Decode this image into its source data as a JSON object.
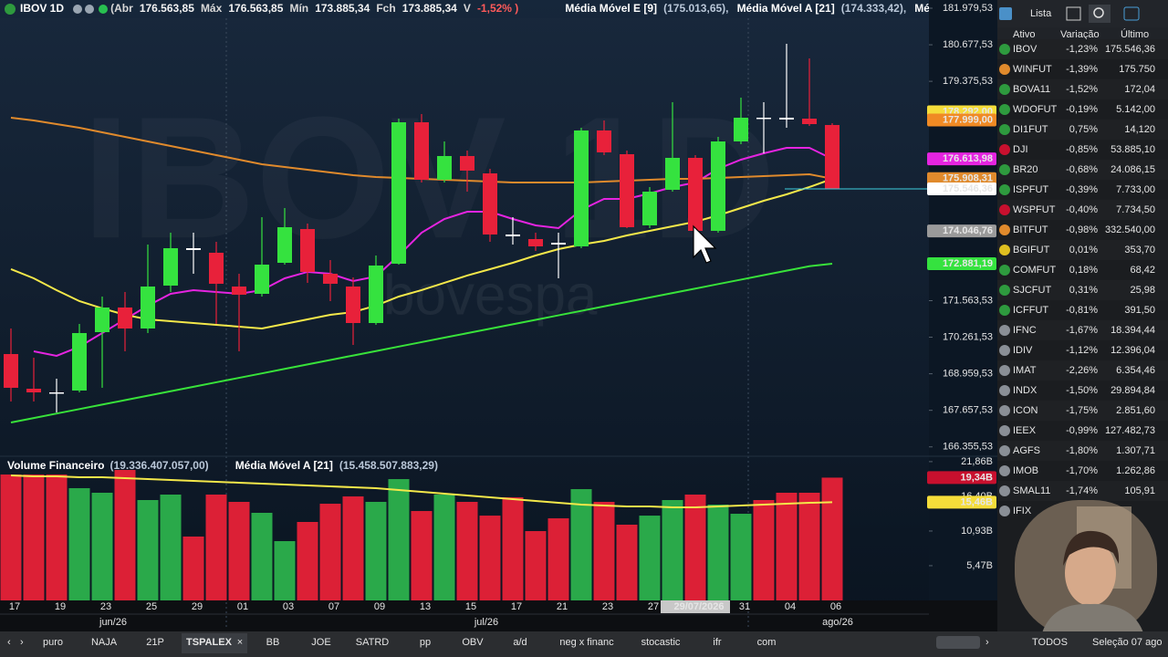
{
  "header": {
    "symbol": "IBOV 1D",
    "open_label": "(Abr",
    "open": "176.563,85",
    "high_label": "Máx",
    "high": "176.563,85",
    "low_label": "Mín",
    "low": "173.885,34",
    "close_label": "Fch",
    "close": "173.885,34",
    "var_label": "V",
    "var": "-1,52% )",
    "ma_values": [
      "(175.013,65),",
      "(174.333,42),"
    ],
    "more": "Média Mó"
  },
  "watermark": {
    "symbol": "IBOV 1D",
    "exchange": "bovespa"
  },
  "chart_data": [
    {
      "type": "candlestick",
      "categories": [
        "17",
        null,
        "19",
        null,
        "23",
        null,
        "25",
        null,
        "29",
        null,
        "01",
        null,
        "03",
        null,
        "07",
        null,
        "09",
        null,
        "13",
        null,
        "15",
        null,
        "17",
        null,
        "21",
        null,
        "23",
        null,
        "27",
        null,
        "29/07/2026",
        null,
        "31",
        null,
        "04",
        null,
        "06"
      ],
      "crosshair_index": 30,
      "months": [
        "jun/26",
        "jul/26",
        "ago/26"
      ],
      "open": [
        169662,
        168427,
        168297,
        168362,
        170442,
        171320,
        170572,
        172100,
        173432,
        173270,
        172067,
        171807,
        172912,
        174115,
        172522,
        172067,
        170767,
        172880,
        177917,
        175870,
        176715,
        176097,
        173920,
        173757,
        173627,
        173497,
        177625,
        176780,
        174245,
        175512,
        176650,
        174050,
        177235,
        178080,
        178080,
        178047,
        177820
      ],
      "high": [
        170572,
        169532,
        168785,
        170735,
        171710,
        171872,
        173562,
        173985,
        173985,
        173660,
        172522,
        174537,
        174862,
        174310,
        173010,
        172392,
        173172,
        178047,
        178210,
        177235,
        176910,
        176260,
        174537,
        173985,
        173985,
        177722,
        177982,
        176910,
        175610,
        178632,
        176747,
        177397,
        178795,
        178632,
        180712,
        180192,
        177885
      ],
      "low": [
        167972,
        167972,
        167582,
        168297,
        168460,
        169760,
        170410,
        171872,
        172522,
        170735,
        169760,
        171710,
        172847,
        172197,
        171547,
        169987,
        170702,
        172847,
        175772,
        175772,
        175447,
        173660,
        173562,
        173335,
        172360,
        173432,
        176747,
        174147,
        174147,
        175447,
        173985,
        173985,
        177137,
        176812,
        177722,
        177787,
        175610
      ],
      "close": [
        168460,
        168297,
        168265,
        170410,
        171320,
        170572,
        172067,
        173432,
        173367,
        172165,
        171775,
        172847,
        174180,
        172587,
        172165,
        170767,
        172815,
        177917,
        175870,
        176715,
        176195,
        173920,
        173855,
        173497,
        173562,
        177625,
        176845,
        174180,
        175447,
        176650,
        174050,
        177235,
        178080,
        178047,
        178015,
        177852,
        175546
      ],
      "up_color": "#35e23f",
      "down_color": "#e8213a",
      "doji_color": "#ffffff",
      "series": [
        {
          "name": "Média Móvel E [9]",
          "color": "#e524e0",
          "values": [
            null,
            169760,
            169598,
            169922,
            170410,
            170898,
            171385,
            171808,
            171938,
            171872,
            171808,
            171938,
            172360,
            172588,
            172522,
            172262,
            172425,
            173172,
            173985,
            174472,
            174732,
            174732,
            174472,
            174245,
            174148,
            174798,
            175188,
            175188,
            175382,
            175610,
            175772,
            176260,
            176585,
            176812,
            177008,
            177008,
            176614
          ]
        },
        {
          "name": "Média Móvel A [21]",
          "color": "#f4e84a",
          "values": [
            172685,
            172360,
            171938,
            171547,
            171288,
            171060,
            170898,
            170832,
            170768,
            170702,
            170638,
            170572,
            170735,
            170898,
            171060,
            171158,
            171385,
            171710,
            171938,
            172198,
            172458,
            172685,
            172912,
            173172,
            173400,
            173562,
            173692,
            173888,
            174050,
            174212,
            174375,
            174602,
            174862,
            175122,
            175350,
            175610,
            175902
          ]
        },
        {
          "color": "#e08a2c",
          "values": [
            178080,
            177982,
            177852,
            177722,
            177560,
            177398,
            177235,
            177072,
            176910,
            176748,
            176585,
            176422,
            176325,
            176228,
            176130,
            176032,
            175968,
            175935,
            175902,
            175870,
            175838,
            175805,
            175772,
            175772,
            175772,
            175772,
            175805,
            175838,
            175870,
            175902,
            175902,
            175935,
            175968,
            176000,
            176032,
            176065,
            175908
          ]
        },
        {
          "color": "#38e23a",
          "values": [
            167225,
            167384,
            167543,
            167702,
            167861,
            168020,
            168179,
            168338,
            168497,
            168656,
            168815,
            168974,
            169133,
            169292,
            169451,
            169610,
            169769,
            169928,
            170087,
            170246,
            170405,
            170564,
            170723,
            170882,
            171041,
            171200,
            171359,
            171518,
            171677,
            171836,
            171995,
            172154,
            172313,
            172472,
            172631,
            172790,
            172881
          ]
        }
      ],
      "ylim": [
        166022,
        182272
      ],
      "yticks": [
        {
          "value": 181979.53,
          "label": "181.979,53"
        },
        {
          "value": 180677.53,
          "label": "180.677,53"
        },
        {
          "value": 179375.53,
          "label": "179.375,53"
        },
        {
          "value": 171563.53,
          "label": "171.563,53"
        },
        {
          "value": 170261.53,
          "label": "170.261,53"
        },
        {
          "value": 168959.53,
          "label": "168.959,53"
        },
        {
          "value": 167657.53,
          "label": "167.657,53"
        },
        {
          "value": 166355.53,
          "label": "166.355,53"
        }
      ],
      "axis_flags": [
        {
          "value": 178292,
          "label": "178.292,00",
          "color": "#f5dd3a"
        },
        {
          "value": 177999,
          "label": "177.999,00",
          "color": "#f08a24"
        },
        {
          "value": 176613.98,
          "label": "176.613,98",
          "color": "#e524e0"
        },
        {
          "value": 175908.31,
          "label": "175.908,31",
          "color": "#e08a2c"
        },
        {
          "value": 175546.36,
          "label": "175.546,36",
          "color": "#ffffff"
        },
        {
          "value": 174046.76,
          "label": "174.046,76",
          "color": "#9a9a9a"
        },
        {
          "value": 172881.19,
          "label": "172.881,19",
          "color": "#35e23f"
        }
      ],
      "price_line_color": "#3fd0e0"
    },
    {
      "type": "bar",
      "title": "Volume Financeiro",
      "title_value": "(19.336.407.057,00)",
      "values": [
        19.83,
        19.83,
        19.83,
        17.68,
        16.96,
        20.55,
        15.81,
        16.67,
        10.06,
        16.67,
        15.52,
        13.8,
        9.34,
        12.36,
        15.23,
        16.38,
        15.52,
        19.11,
        14.08,
        16.67,
        15.52,
        13.36,
        16.24,
        10.92,
        12.93,
        17.53,
        15.52,
        11.93,
        13.36,
        15.81,
        16.67,
        15.09,
        13.65,
        15.81,
        16.96,
        16.96,
        19.34
      ],
      "up_color": "#2aa94a",
      "down_color": "#dc2036",
      "series": [
        {
          "name": "Média Móvel A [21]",
          "value_text": "(15.458.507.883,29)",
          "color": "#f4e84a",
          "values": [
            19.69,
            19.54,
            19.54,
            19.4,
            19.4,
            19.26,
            19.11,
            18.97,
            18.82,
            18.68,
            18.54,
            18.39,
            18.25,
            18.11,
            17.96,
            17.82,
            17.67,
            17.39,
            17.1,
            16.81,
            16.53,
            16.24,
            15.95,
            15.66,
            15.38,
            15.09,
            14.94,
            14.8,
            14.8,
            14.66,
            14.66,
            14.8,
            14.94,
            15.09,
            15.23,
            15.38,
            15.46
          ]
        }
      ],
      "ylim": [
        0,
        22.42
      ],
      "yticks": [
        {
          "value": 21.86,
          "label": "21,86B"
        },
        {
          "value": 16.4,
          "label": "16,40B"
        },
        {
          "value": 10.93,
          "label": "10,93B"
        },
        {
          "value": 5.47,
          "label": "5,47B"
        }
      ],
      "axis_flags": [
        {
          "value": 19.34,
          "label": "19,34B",
          "color": "#c8102e"
        },
        {
          "value": 15.46,
          "label": "15,46B",
          "color": "#f5dd3a"
        }
      ]
    }
  ],
  "watchlist": {
    "title": "Lista",
    "columns": [
      "Ativo",
      "Variação",
      "Último"
    ],
    "rows": [
      {
        "ticker": "IBOV",
        "variation": "-1,23%",
        "last": "175.546,36"
      },
      {
        "ticker": "WINFUT",
        "variation": "-1,39%",
        "last": "175.750"
      },
      {
        "ticker": "BOVA11",
        "variation": "-1,52%",
        "last": "172,04"
      },
      {
        "ticker": "WDOFUT",
        "variation": "-0,19%",
        "last": "5.142,00"
      },
      {
        "ticker": "DI1FUT",
        "variation": "0,75%",
        "last": "14,120"
      },
      {
        "ticker": "DJI",
        "variation": "-0,85%",
        "last": "53.885,10"
      },
      {
        "ticker": "BR20",
        "variation": "-0,68%",
        "last": "24.086,15"
      },
      {
        "ticker": "ISPFUT",
        "variation": "-0,39%",
        "last": "7.733,00"
      },
      {
        "ticker": "WSPFUT",
        "variation": "-0,40%",
        "last": "7.734,50"
      },
      {
        "ticker": "BITFUT",
        "variation": "-0,98%",
        "last": "332.540,00"
      },
      {
        "ticker": "BGIFUT",
        "variation": "0,01%",
        "last": "353,70"
      },
      {
        "ticker": "COMFUT",
        "variation": "0,18%",
        "last": "68,42"
      },
      {
        "ticker": "SJCFUT",
        "variation": "0,31%",
        "last": "25,98"
      },
      {
        "ticker": "ICFFUT",
        "variation": "-0,81%",
        "last": "391,50"
      },
      {
        "ticker": "IFNC",
        "variation": "-1,67%",
        "last": "18.394,44"
      },
      {
        "ticker": "IDIV",
        "variation": "-1,12%",
        "last": "12.396,04"
      },
      {
        "ticker": "IMAT",
        "variation": "-2,26%",
        "last": "6.354,46"
      },
      {
        "ticker": "INDX",
        "variation": "-1,50%",
        "last": "29.894,84"
      },
      {
        "ticker": "ICON",
        "variation": "-1,75%",
        "last": "2.851,60"
      },
      {
        "ticker": "IEEX",
        "variation": "-0,99%",
        "last": "127.482,73"
      },
      {
        "ticker": "AGFS",
        "variation": "-1,80%",
        "last": "1.307,71"
      },
      {
        "ticker": "IMOB",
        "variation": "-1,70%",
        "last": "1.262,86"
      },
      {
        "ticker": "SMAL11",
        "variation": "-1,74%",
        "last": "105,91"
      },
      {
        "ticker": "IFIX"
      }
    ]
  },
  "tabs": [
    "puro",
    "NAJA",
    "21P",
    "TSPALEX",
    "BB",
    "JOE",
    "SATRD",
    "pp",
    "OBV",
    "a/d",
    "neg x financ",
    "stocastic",
    "ifr",
    "com"
  ],
  "active_tab": 3,
  "footer": {
    "filter": "TODOS",
    "selection": "Seleção 07 ago"
  }
}
